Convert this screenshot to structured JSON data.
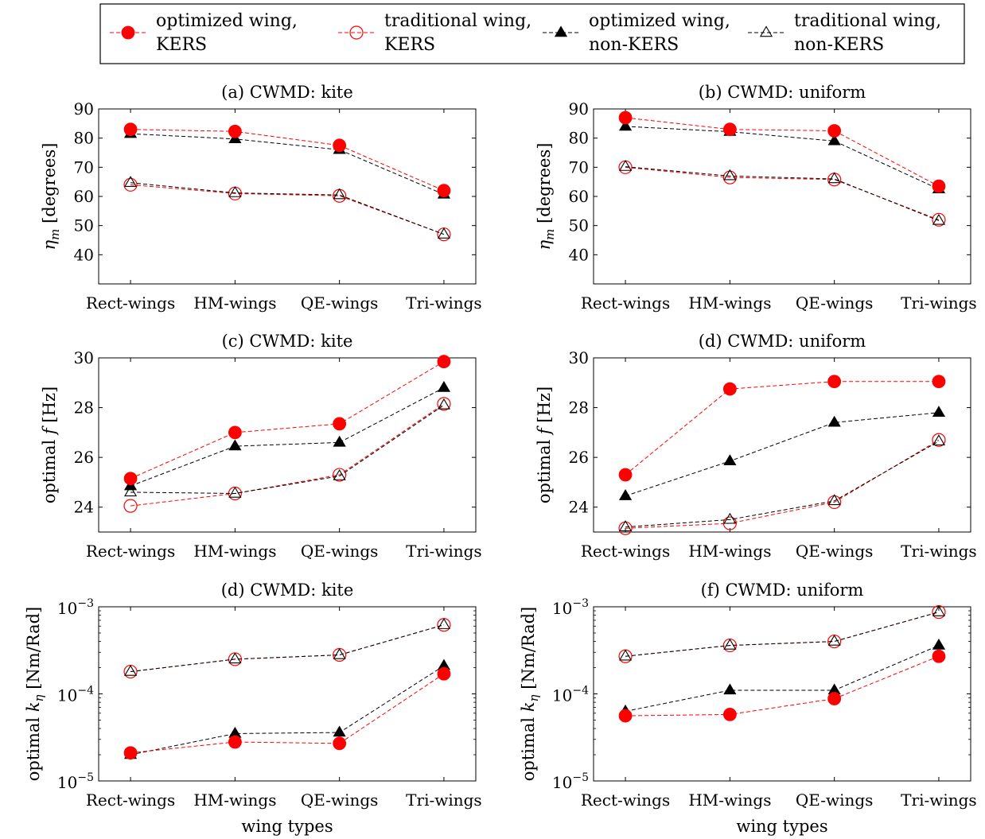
{
  "legend": [
    {
      "label_line1": "optimized wing,",
      "label_line2": "KERS",
      "color": "#ff0000",
      "marker": "filled-circle"
    },
    {
      "label_line1": "traditional wing,",
      "label_line2": "KERS",
      "color": "#ff0000",
      "marker": "open-circle"
    },
    {
      "label_line1": "optimized wing,",
      "label_line2": "non-KERS",
      "color": "#000000",
      "marker": "filled-triangle"
    },
    {
      "label_line1": "traditional wing,",
      "label_line2": "non-KERS",
      "color": "#000000",
      "marker": "open-triangle"
    }
  ],
  "chart_data": [
    {
      "type": "line",
      "title": "(a) CWMD: kite",
      "xlabel": "",
      "ylabel": "η_m [degrees]",
      "ylabel_base": "η",
      "ylabel_sub": "m",
      "ylabel_rest": "[degrees]",
      "categories": [
        "Rect-wings",
        "HM-wings",
        "QE-wings",
        "Tri-wings"
      ],
      "yscale": "linear",
      "ylim": [
        30,
        90
      ],
      "yticks": [
        40,
        50,
        60,
        70,
        80,
        90
      ],
      "ytick_labels": [
        "40",
        "50",
        "60",
        "70",
        "80",
        "90"
      ],
      "grid": false,
      "series": [
        {
          "name": "optimized wing, KERS",
          "values": [
            83,
            82.3,
            77.5,
            62
          ]
        },
        {
          "name": "traditional wing, KERS",
          "values": [
            64,
            61,
            60.2,
            47
          ]
        },
        {
          "name": "optimized wing, non-KERS",
          "values": [
            81.5,
            79.7,
            76,
            60.7
          ]
        },
        {
          "name": "traditional wing, non-KERS",
          "values": [
            64.7,
            61.2,
            60.5,
            47
          ]
        }
      ]
    },
    {
      "type": "line",
      "title": "(b) CWMD: uniform",
      "xlabel": "",
      "ylabel": "η_m [degrees]",
      "ylabel_base": "η",
      "ylabel_sub": "m",
      "ylabel_rest": "[degrees]",
      "categories": [
        "Rect-wings",
        "HM-wings",
        "QE-wings",
        "Tri-wings"
      ],
      "yscale": "linear",
      "ylim": [
        30,
        90
      ],
      "yticks": [
        40,
        50,
        60,
        70,
        80,
        90
      ],
      "ytick_labels": [
        "40",
        "50",
        "60",
        "70",
        "80",
        "90"
      ],
      "grid": false,
      "series": [
        {
          "name": "optimized wing, KERS",
          "values": [
            87,
            83,
            82.5,
            63.5
          ]
        },
        {
          "name": "traditional wing, KERS",
          "values": [
            70,
            66.5,
            65.8,
            52
          ]
        },
        {
          "name": "optimized wing, non-KERS",
          "values": [
            84,
            82.2,
            79,
            62.5
          ]
        },
        {
          "name": "traditional wing, non-KERS",
          "values": [
            70.2,
            67,
            66,
            51.7
          ]
        }
      ]
    },
    {
      "type": "line",
      "title": "(c) CWMD: kite",
      "xlabel": "",
      "ylabel": "optimal f [Hz]",
      "ylabel_base": "optimal ",
      "ylabel_italic": "f",
      "ylabel_rest": "[Hz]",
      "categories": [
        "Rect-wings",
        "HM-wings",
        "QE-wings",
        "Tri-wings"
      ],
      "yscale": "linear",
      "ylim": [
        23,
        30
      ],
      "yticks": [
        24,
        26,
        28,
        30
      ],
      "ytick_labels": [
        "24",
        "26",
        "28",
        "30"
      ],
      "grid": false,
      "series": [
        {
          "name": "optimized wing, KERS",
          "values": [
            25.15,
            27,
            27.35,
            29.85
          ]
        },
        {
          "name": "traditional wing, KERS",
          "values": [
            24.05,
            24.55,
            25.3,
            28.15
          ]
        },
        {
          "name": "optimized wing, non-KERS",
          "values": [
            24.85,
            26.45,
            26.6,
            28.8
          ]
        },
        {
          "name": "traditional wing, non-KERS",
          "values": [
            24.6,
            24.55,
            25.25,
            28.1
          ]
        }
      ]
    },
    {
      "type": "line",
      "title": "(d) CWMD: uniform",
      "xlabel": "",
      "ylabel": "optimal f [Hz]",
      "ylabel_base": "optimal ",
      "ylabel_italic": "f",
      "ylabel_rest": "[Hz]",
      "categories": [
        "Rect-wings",
        "HM-wings",
        "QE-wings",
        "Tri-wings"
      ],
      "yscale": "linear",
      "ylim": [
        23,
        30
      ],
      "yticks": [
        24,
        26,
        28,
        30
      ],
      "ytick_labels": [
        "24",
        "26",
        "28",
        "30"
      ],
      "grid": false,
      "series": [
        {
          "name": "optimized wing, KERS",
          "values": [
            25.3,
            28.75,
            29.05,
            29.05
          ]
        },
        {
          "name": "traditional wing, KERS",
          "values": [
            23.15,
            23.35,
            24.2,
            26.7
          ]
        },
        {
          "name": "optimized wing, non-KERS",
          "values": [
            24.45,
            25.85,
            27.4,
            27.8
          ]
        },
        {
          "name": "traditional wing, non-KERS",
          "values": [
            23.2,
            23.5,
            24.25,
            26.65
          ]
        }
      ]
    },
    {
      "type": "line",
      "title": "(d) CWMD: kite",
      "xlabel": "wing types",
      "ylabel": "optimal k_η [Nm/Rad]",
      "ylabel_base": "optimal ",
      "ylabel_italic": "k",
      "ylabel_sub": "η",
      "ylabel_rest": "[Nm/Rad]",
      "categories": [
        "Rect-wings",
        "HM-wings",
        "QE-wings",
        "Tri-wings"
      ],
      "yscale": "log",
      "ylim": [
        1e-05,
        0.001
      ],
      "yticks": [
        1e-05,
        0.0001,
        0.001
      ],
      "ytick_labels": [
        [
          "10",
          "−5"
        ],
        [
          "10",
          "−4"
        ],
        [
          "10",
          "−3"
        ]
      ],
      "grid": false,
      "series": [
        {
          "name": "optimized wing, KERS",
          "values": [
            2.1e-05,
            2.8e-05,
            2.7e-05,
            0.00017
          ]
        },
        {
          "name": "traditional wing, KERS",
          "values": [
            0.00018,
            0.00025,
            0.00028,
            0.00062
          ]
        },
        {
          "name": "optimized wing, non-KERS",
          "values": [
            2e-05,
            3.5e-05,
            3.6e-05,
            0.00021
          ]
        },
        {
          "name": "traditional wing, non-KERS",
          "values": [
            0.00018,
            0.00025,
            0.00028,
            0.00062
          ]
        }
      ]
    },
    {
      "type": "line",
      "title": "(f) CWMD: uniform",
      "xlabel": "wing types",
      "ylabel": "optimal k_η [Nm/Rad]",
      "ylabel_base": "optimal ",
      "ylabel_italic": "k",
      "ylabel_sub": "η",
      "ylabel_rest": "[Nm/Rad]",
      "categories": [
        "Rect-wings",
        "HM-wings",
        "QE-wings",
        "Tri-wings"
      ],
      "yscale": "log",
      "ylim": [
        1e-05,
        0.001
      ],
      "yticks": [
        1e-05,
        0.0001,
        0.001
      ],
      "ytick_labels": [
        [
          "10",
          "−5"
        ],
        [
          "10",
          "−4"
        ],
        [
          "10",
          "−3"
        ]
      ],
      "grid": false,
      "series": [
        {
          "name": "optimized wing, KERS",
          "values": [
            5.6e-05,
            5.8e-05,
            8.8e-05,
            0.00027
          ]
        },
        {
          "name": "traditional wing, KERS",
          "values": [
            0.00027,
            0.00036,
            0.0004,
            0.00087
          ]
        },
        {
          "name": "optimized wing, non-KERS",
          "values": [
            6.3e-05,
            0.00011,
            0.00011,
            0.00036
          ]
        },
        {
          "name": "traditional wing, non-KERS",
          "values": [
            0.00027,
            0.00036,
            0.0004,
            0.00087
          ]
        }
      ]
    }
  ]
}
